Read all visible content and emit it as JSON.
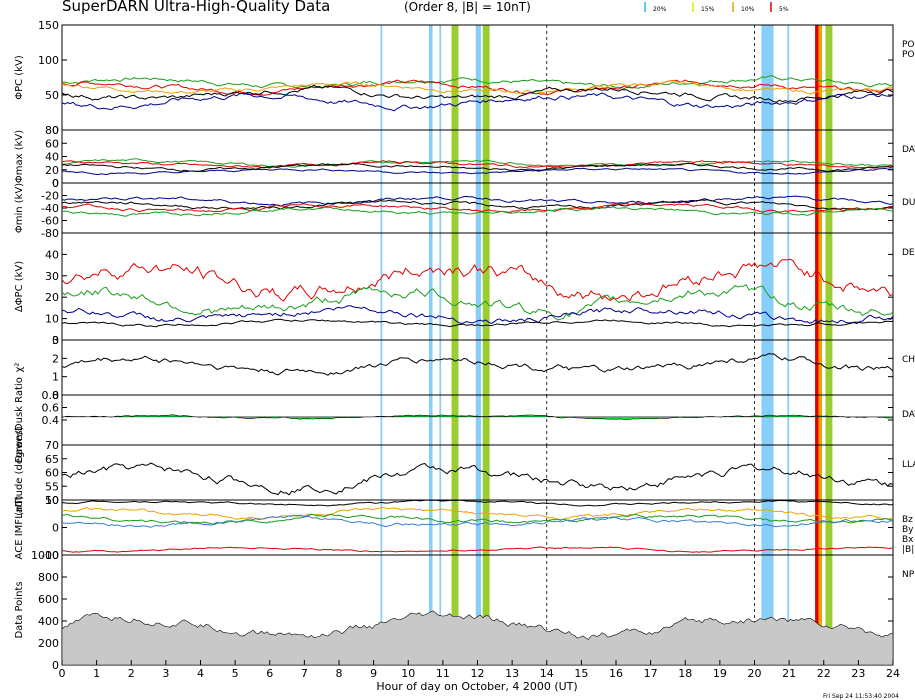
{
  "title": "SuperDARN Ultra-High-Quality Data",
  "subtitle": "(Order 8, |B| = 10nT)",
  "legend": [
    {
      "label": "20%",
      "color": "#2fb8e6"
    },
    {
      "label": "15%",
      "color": "#d8e800"
    },
    {
      "label": "10%",
      "color": "#f0a000"
    },
    {
      "label": "5%",
      "color": "#e00000"
    }
  ],
  "xaxis": {
    "label": "Hour of day on October, 4 2000 (UT)",
    "ticks": [
      "0",
      "1",
      "2",
      "3",
      "4",
      "5",
      "6",
      "7",
      "8",
      "9",
      "10",
      "11",
      "12",
      "13",
      "14",
      "15",
      "16",
      "17",
      "18",
      "19",
      "20",
      "21",
      "22",
      "23",
      "24"
    ],
    "range": [
      0,
      24
    ]
  },
  "timestamp": "Fri Sep 24 11:53:40 2004",
  "chart_data": [
    {
      "type": "line",
      "panel": "phi_pc",
      "ylabel": "ΦPC (kV)",
      "ylim": [
        0,
        150
      ],
      "yticks": [
        "0",
        "50",
        "100",
        "150"
      ],
      "right_labels": [
        "PO",
        "PO"
      ],
      "series": [
        {
          "color": "#1a9e1a",
          "base": 68,
          "amp": 10
        },
        {
          "color": "#e00000",
          "base": 62,
          "amp": 10
        },
        {
          "color": "#f0a000",
          "base": 60,
          "amp": 9
        },
        {
          "color": "#000000",
          "base": 52,
          "amp": 12
        },
        {
          "color": "#00008b",
          "base": 42,
          "amp": 13
        }
      ]
    },
    {
      "type": "line",
      "panel": "phi_max",
      "ylabel": "Φmax (kV)",
      "ylim": [
        0,
        80
      ],
      "yticks": [
        "0",
        "20",
        "40",
        "60",
        "80"
      ],
      "right_labels": [
        "DAY"
      ],
      "series": [
        {
          "color": "#1a9e1a",
          "base": 30,
          "amp": 6
        },
        {
          "color": "#e00000",
          "base": 28,
          "amp": 6
        },
        {
          "color": "#000000",
          "base": 24,
          "amp": 6
        },
        {
          "color": "#00008b",
          "base": 18,
          "amp": 5
        }
      ]
    },
    {
      "type": "line",
      "panel": "phi_min",
      "ylabel": "Φmin (kV)",
      "ylim": [
        -80,
        0
      ],
      "yticks": [
        "-80",
        "-60",
        "-40",
        "-20",
        "0"
      ],
      "right_labels": [
        "DU"
      ],
      "series": [
        {
          "color": "#00008b",
          "base": -28,
          "amp": 8
        },
        {
          "color": "#000000",
          "base": -35,
          "amp": 8
        },
        {
          "color": "#e00000",
          "base": -40,
          "amp": 8
        },
        {
          "color": "#1a9e1a",
          "base": -45,
          "amp": 8
        }
      ]
    },
    {
      "type": "line",
      "panel": "delta_phi_pc",
      "ylabel": "ΔΦPC (kV)",
      "ylim": [
        0,
        50
      ],
      "yticks": [
        "0",
        "10",
        "20",
        "30",
        "40"
      ],
      "right_labels": [
        "DE"
      ],
      "series": [
        {
          "color": "#e00000",
          "base": 28,
          "amp": 11
        },
        {
          "color": "#1a9e1a",
          "base": 18,
          "amp": 8
        },
        {
          "color": "#00008b",
          "base": 12,
          "amp": 5
        },
        {
          "color": "#000000",
          "base": 8,
          "amp": 2
        }
      ]
    },
    {
      "type": "line",
      "panel": "chi2",
      "ylabel": "χ²",
      "ylim": [
        0,
        3
      ],
      "yticks": [
        "0",
        "1",
        "2",
        "3"
      ],
      "right_labels": [
        "CH"
      ],
      "series": [
        {
          "color": "#000000",
          "base": 1.6,
          "amp": 0.6
        }
      ]
    },
    {
      "type": "area",
      "panel": "dawn_dusk_ratio",
      "ylabel": "Dawn/Dusk Ratio",
      "ylim": [
        0,
        0.8
      ],
      "yticks": [
        "0.4",
        "0.6",
        "0.8"
      ],
      "right_labels": [
        "DAY"
      ],
      "series": [
        {
          "color": "#00ff33",
          "base": 0.45,
          "amp": 0.04
        }
      ]
    },
    {
      "type": "line",
      "panel": "latitude",
      "ylabel": "Latitude (degrees)",
      "ylim": [
        50,
        70
      ],
      "yticks": [
        "50",
        "55",
        "60",
        "65",
        "70"
      ],
      "right_labels": [
        "LLA"
      ],
      "series": [
        {
          "color": "#000000",
          "base": 58,
          "amp": 5
        }
      ]
    },
    {
      "type": "line",
      "panel": "ace_imf",
      "ylabel": "ACE IMF (nT)",
      "ylim": [
        -10,
        10
      ],
      "yticks": [
        "-10",
        "0",
        "10"
      ],
      "right_labels": [
        "Bz",
        "By",
        "Bx",
        "|B|"
      ],
      "series": [
        {
          "color": "#000000",
          "base": 9,
          "amp": 1
        },
        {
          "color": "#f0a000",
          "base": 5,
          "amp": 2
        },
        {
          "color": "#1a9e1a",
          "base": 3,
          "amp": 2
        },
        {
          "color": "#3b7bd8",
          "base": 2,
          "amp": 2
        },
        {
          "color": "#e00000",
          "base": -8,
          "amp": 1
        }
      ]
    },
    {
      "type": "area",
      "panel": "data_points",
      "ylabel": "Data Points",
      "ylim": [
        0,
        1000
      ],
      "yticks": [
        "0",
        "200",
        "400",
        "600",
        "800",
        "1000"
      ],
      "right_labels": [
        "NP"
      ],
      "series": [
        {
          "color": "#c8c8c8",
          "base": 350,
          "amp": 120
        }
      ]
    }
  ],
  "bands": [
    {
      "start": 9.2,
      "end": 9.25,
      "color": "#87cefa"
    },
    {
      "start": 10.6,
      "end": 10.7,
      "color": "#87cefa"
    },
    {
      "start": 10.9,
      "end": 10.95,
      "color": "#87cefa"
    },
    {
      "start": 11.25,
      "end": 11.45,
      "color": "#9acd32"
    },
    {
      "start": 11.95,
      "end": 12.1,
      "color": "#87cefa"
    },
    {
      "start": 12.15,
      "end": 12.35,
      "color": "#9acd32"
    },
    {
      "start": 20.2,
      "end": 20.55,
      "color": "#87cefa"
    },
    {
      "start": 20.95,
      "end": 21.0,
      "color": "#87cefa"
    },
    {
      "start": 21.75,
      "end": 21.85,
      "color": "#e00000"
    },
    {
      "start": 21.85,
      "end": 21.95,
      "color": "#f0a000"
    },
    {
      "start": 22.05,
      "end": 22.25,
      "color": "#9acd32"
    }
  ],
  "dashed_lines": [
    14,
    20
  ]
}
